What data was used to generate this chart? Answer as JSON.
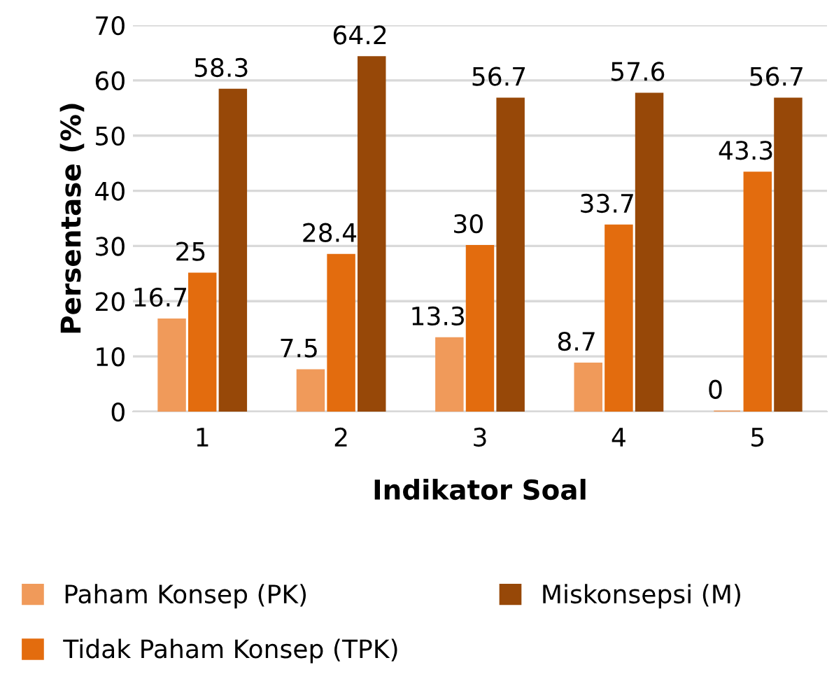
{
  "chart_data": {
    "type": "bar",
    "xlabel": "Indikator Soal",
    "ylabel": "Persentase (%)",
    "categories": [
      "1",
      "2",
      "3",
      "4",
      "5"
    ],
    "series": [
      {
        "name": "Paham Konsep (PK)",
        "color": "#f09a5a",
        "values": [
          16.7,
          7.5,
          13.3,
          8.7,
          0
        ]
      },
      {
        "name": "Tidak Paham Konsep (TPK)",
        "color": "#e36c0e",
        "values": [
          25,
          28.4,
          30,
          33.7,
          43.3
        ]
      },
      {
        "name": "Miskonsepsi (M)",
        "color": "#974808",
        "values": [
          58.3,
          64.2,
          56.7,
          57.6,
          56.7
        ]
      }
    ],
    "ylim": [
      0,
      70
    ],
    "yticks": [
      0,
      10,
      20,
      30,
      40,
      50,
      60,
      70
    ],
    "grid": "y",
    "legend": "bottom",
    "data_labels": true
  }
}
